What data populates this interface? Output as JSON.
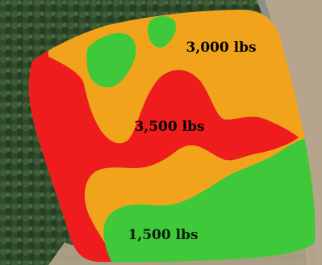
{
  "map": {
    "zones": [
      {
        "label": "3,000 lbs",
        "color": "#f2a31c",
        "text_color": "#000000"
      },
      {
        "label": "3,500 lbs",
        "color": "#ee1c1c",
        "text_color": "#000000"
      },
      {
        "label": "1,500 lbs",
        "color": "#3fc93a",
        "text_color": "#0a1a0a"
      }
    ],
    "background": {
      "tree_color": "#2f4a2a",
      "field_color": "#b6a58c",
      "road_color": "#8e8e8a"
    }
  }
}
